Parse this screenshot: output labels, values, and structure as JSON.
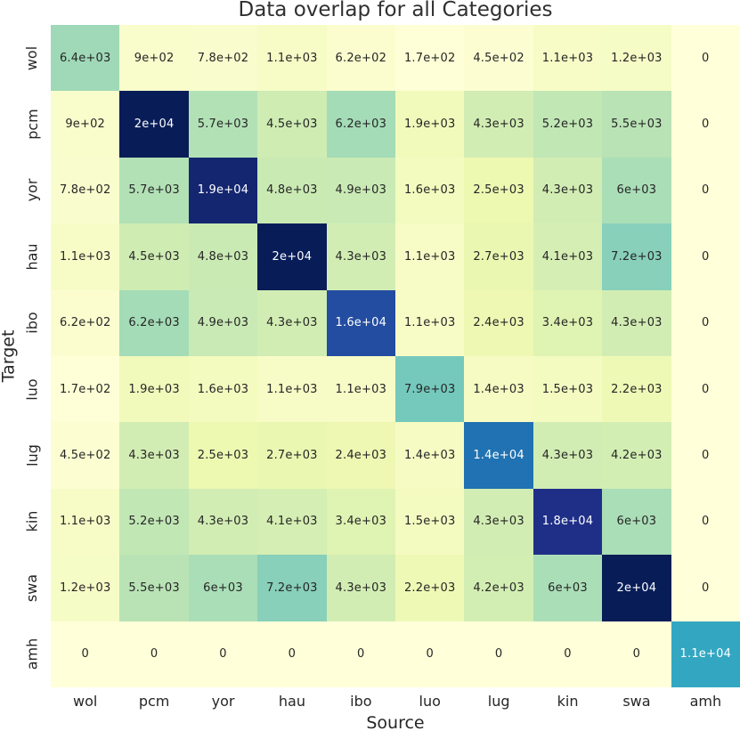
{
  "title": "Data overlap for all Categories",
  "chart_data": {
    "type": "heatmap",
    "title": "Data overlap for all Categories",
    "xlabel": "Source",
    "ylabel": "Target",
    "x_categories": [
      "wol",
      "pcm",
      "yor",
      "hau",
      "ibo",
      "luo",
      "lug",
      "kin",
      "swa",
      "amh"
    ],
    "y_categories": [
      "wol",
      "pcm",
      "yor",
      "hau",
      "ibo",
      "luo",
      "lug",
      "kin",
      "swa",
      "amh"
    ],
    "values": [
      [
        6400,
        900,
        780,
        1100,
        620,
        170,
        450,
        1100,
        1200,
        0
      ],
      [
        900,
        20000,
        5700,
        4500,
        6200,
        1900,
        4300,
        5200,
        5500,
        0
      ],
      [
        780,
        5700,
        19000,
        4800,
        4900,
        1600,
        2500,
        4300,
        6000,
        0
      ],
      [
        1100,
        4500,
        4800,
        20000,
        4300,
        1100,
        2700,
        4100,
        7200,
        0
      ],
      [
        620,
        6200,
        4900,
        4300,
        16000,
        1100,
        2400,
        3400,
        4300,
        0
      ],
      [
        170,
        1900,
        1600,
        1100,
        1100,
        7900,
        1400,
        1500,
        2200,
        0
      ],
      [
        450,
        4300,
        2500,
        2700,
        2400,
        1400,
        14000,
        4300,
        4200,
        0
      ],
      [
        1100,
        5200,
        4300,
        4100,
        3400,
        1500,
        4300,
        18000,
        6000,
        0
      ],
      [
        1200,
        5500,
        6000,
        7200,
        4300,
        2200,
        4200,
        6000,
        20000,
        0
      ],
      [
        0,
        0,
        0,
        0,
        0,
        0,
        0,
        0,
        0,
        11000
      ]
    ],
    "cell_labels": [
      [
        "6.4e+03",
        "9e+02",
        "7.8e+02",
        "1.1e+03",
        "6.2e+02",
        "1.7e+02",
        "4.5e+02",
        "1.1e+03",
        "1.2e+03",
        "0"
      ],
      [
        "9e+02",
        "2e+04",
        "5.7e+03",
        "4.5e+03",
        "6.2e+03",
        "1.9e+03",
        "4.3e+03",
        "5.2e+03",
        "5.5e+03",
        "0"
      ],
      [
        "7.8e+02",
        "5.7e+03",
        "1.9e+04",
        "4.8e+03",
        "4.9e+03",
        "1.6e+03",
        "2.5e+03",
        "4.3e+03",
        "6e+03",
        "0"
      ],
      [
        "1.1e+03",
        "4.5e+03",
        "4.8e+03",
        "2e+04",
        "4.3e+03",
        "1.1e+03",
        "2.7e+03",
        "4.1e+03",
        "7.2e+03",
        "0"
      ],
      [
        "6.2e+02",
        "6.2e+03",
        "4.9e+03",
        "4.3e+03",
        "1.6e+04",
        "1.1e+03",
        "2.4e+03",
        "3.4e+03",
        "4.3e+03",
        "0"
      ],
      [
        "1.7e+02",
        "1.9e+03",
        "1.6e+03",
        "1.1e+03",
        "1.1e+03",
        "7.9e+03",
        "1.4e+03",
        "1.5e+03",
        "2.2e+03",
        "0"
      ],
      [
        "4.5e+02",
        "4.3e+03",
        "2.5e+03",
        "2.7e+03",
        "2.4e+03",
        "1.4e+03",
        "1.4e+04",
        "4.3e+03",
        "4.2e+03",
        "0"
      ],
      [
        "1.1e+03",
        "5.2e+03",
        "4.3e+03",
        "4.1e+03",
        "3.4e+03",
        "1.5e+03",
        "4.3e+03",
        "1.8e+04",
        "6e+03",
        "0"
      ],
      [
        "1.2e+03",
        "5.5e+03",
        "6e+03",
        "7.2e+03",
        "4.3e+03",
        "2.2e+03",
        "4.2e+03",
        "6e+03",
        "2e+04",
        "0"
      ],
      [
        "0",
        "0",
        "0",
        "0",
        "0",
        "0",
        "0",
        "0",
        "0",
        "1.1e+04"
      ]
    ],
    "vmin": 0,
    "vmax": 20000,
    "colormap": "YlGnBu",
    "colormap_anchors": [
      "#ffffd9",
      "#edf8b1",
      "#c7e9b4",
      "#7fcdbb",
      "#41b6c4",
      "#1d91c0",
      "#225ea8",
      "#253494",
      "#081d58"
    ],
    "annotation_dark_color": "#262626",
    "annotation_light_color": "#ffffff",
    "grid": false,
    "legend": "none"
  }
}
